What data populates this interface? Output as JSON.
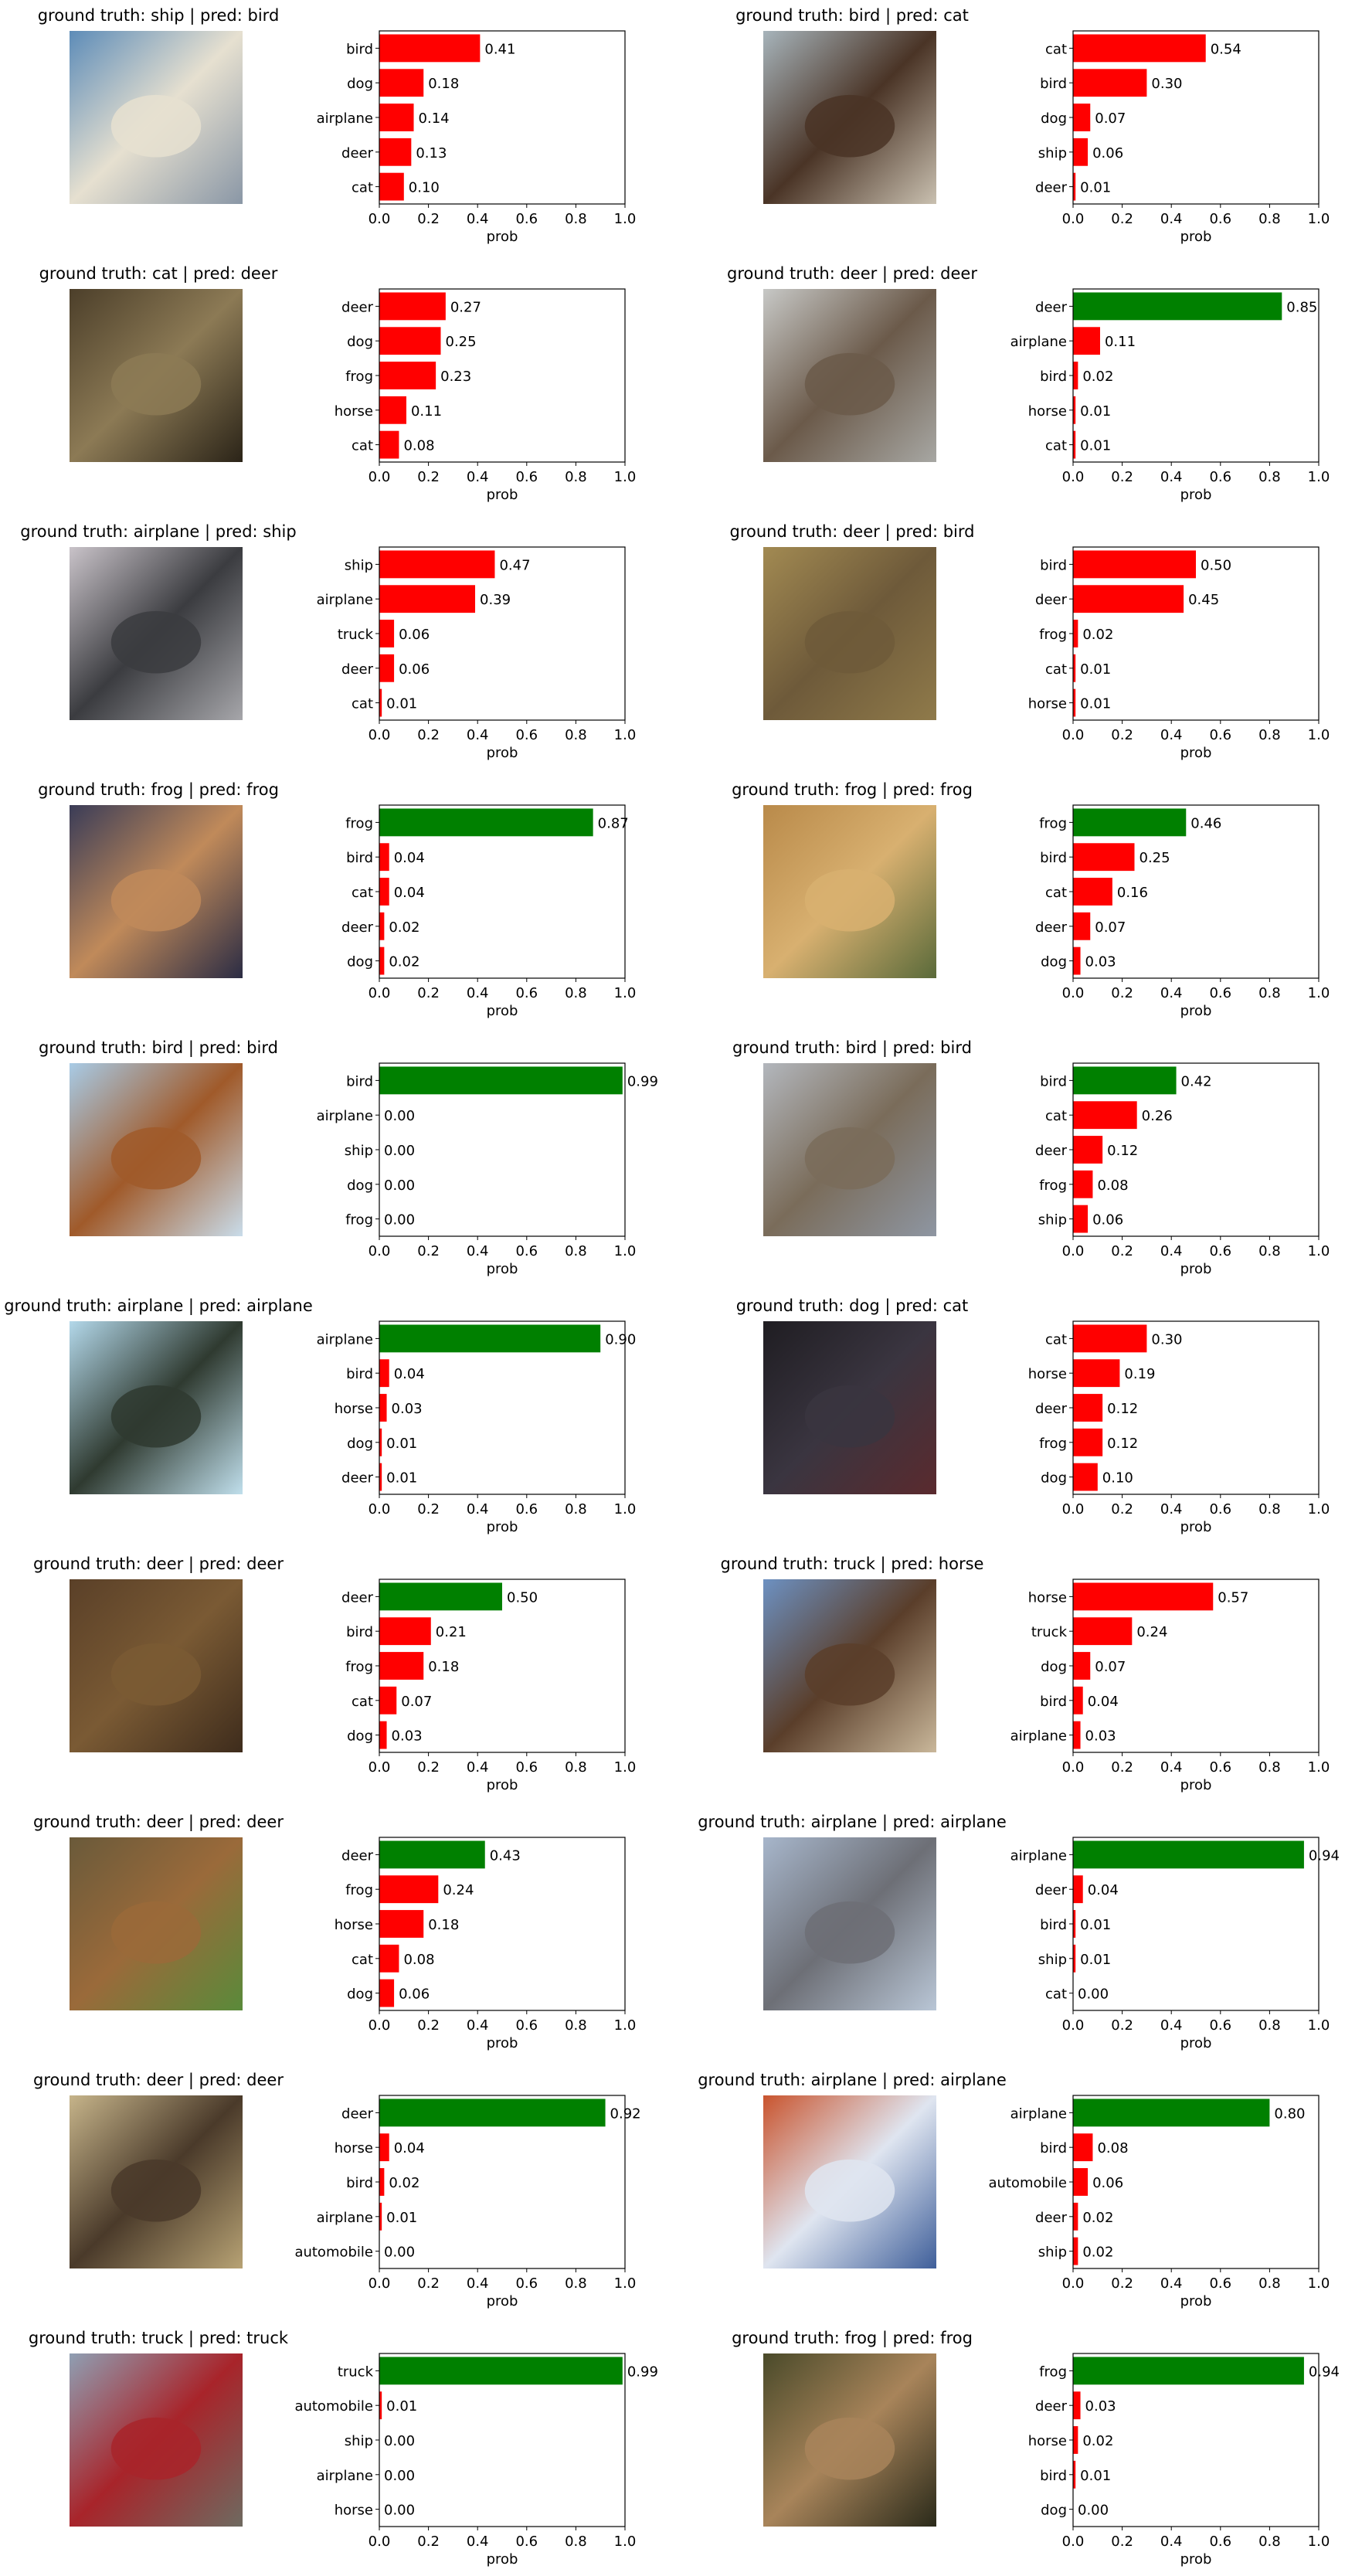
{
  "figure": {
    "xlabel": "prob",
    "xticks": [
      "0.0",
      "0.2",
      "0.4",
      "0.6",
      "0.8",
      "1.0"
    ],
    "title_prefix_gt": "ground truth: ",
    "title_sep": "  |  ",
    "title_prefix_pred": "pred: ",
    "colors": {
      "correct": "#008000",
      "wrong": "#ff0000",
      "axis": "#000000"
    }
  },
  "chart_data": [
    {
      "type": "bar",
      "orientation": "horizontal",
      "ground_truth": "ship",
      "pred": "bird",
      "xlim": [
        0,
        1
      ],
      "categories": [
        "cat",
        "deer",
        "airplane",
        "dog",
        "bird"
      ],
      "values": [
        0.1,
        0.13,
        0.14,
        0.18,
        0.41
      ],
      "thumb_colors": [
        "#5d8cb8",
        "#e6e0d0",
        "#8a97a6"
      ]
    },
    {
      "type": "bar",
      "orientation": "horizontal",
      "ground_truth": "bird",
      "pred": "cat",
      "xlim": [
        0,
        1
      ],
      "categories": [
        "deer",
        "ship",
        "dog",
        "bird",
        "cat"
      ],
      "values": [
        0.01,
        0.06,
        0.07,
        0.3,
        0.54
      ],
      "thumb_colors": [
        "#a7b4bb",
        "#4a3426",
        "#c9c0b0"
      ]
    },
    {
      "type": "bar",
      "orientation": "horizontal",
      "ground_truth": "cat",
      "pred": "deer",
      "xlim": [
        0,
        1
      ],
      "categories": [
        "cat",
        "horse",
        "frog",
        "dog",
        "deer"
      ],
      "values": [
        0.08,
        0.11,
        0.23,
        0.25,
        0.27
      ],
      "thumb_colors": [
        "#4c3f2a",
        "#8c7a55",
        "#2b2418"
      ]
    },
    {
      "type": "bar",
      "orientation": "horizontal",
      "ground_truth": "deer",
      "pred": "deer",
      "xlim": [
        0,
        1
      ],
      "categories": [
        "cat",
        "horse",
        "bird",
        "airplane",
        "deer"
      ],
      "values": [
        0.01,
        0.01,
        0.02,
        0.11,
        0.85
      ],
      "thumb_colors": [
        "#c7c8c6",
        "#6b5a4a",
        "#a7a7a3"
      ]
    },
    {
      "type": "bar",
      "orientation": "horizontal",
      "ground_truth": "airplane",
      "pred": "ship",
      "xlim": [
        0,
        1
      ],
      "categories": [
        "cat",
        "deer",
        "truck",
        "airplane",
        "ship"
      ],
      "values": [
        0.01,
        0.06,
        0.06,
        0.39,
        0.47
      ],
      "thumb_colors": [
        "#c9c3c9",
        "#3b3c40",
        "#a6a6aa"
      ]
    },
    {
      "type": "bar",
      "orientation": "horizontal",
      "ground_truth": "deer",
      "pred": "bird",
      "xlim": [
        0,
        1
      ],
      "categories": [
        "horse",
        "cat",
        "frog",
        "deer",
        "bird"
      ],
      "values": [
        0.01,
        0.01,
        0.02,
        0.45,
        0.5
      ],
      "thumb_colors": [
        "#a28a52",
        "#6e5a3a",
        "#8f7a4a"
      ]
    },
    {
      "type": "bar",
      "orientation": "horizontal",
      "ground_truth": "frog",
      "pred": "frog",
      "xlim": [
        0,
        1
      ],
      "categories": [
        "dog",
        "deer",
        "cat",
        "bird",
        "frog"
      ],
      "values": [
        0.02,
        0.02,
        0.04,
        0.04,
        0.87
      ],
      "thumb_colors": [
        "#3a3c57",
        "#c08a5a",
        "#2b2c44"
      ]
    },
    {
      "type": "bar",
      "orientation": "horizontal",
      "ground_truth": "frog",
      "pred": "frog",
      "xlim": [
        0,
        1
      ],
      "categories": [
        "dog",
        "deer",
        "cat",
        "bird",
        "frog"
      ],
      "values": [
        0.03,
        0.07,
        0.16,
        0.25,
        0.46
      ],
      "thumb_colors": [
        "#b98a4a",
        "#d8b070",
        "#5a6a3a"
      ]
    },
    {
      "type": "bar",
      "orientation": "horizontal",
      "ground_truth": "bird",
      "pred": "bird",
      "xlim": [
        0,
        1
      ],
      "categories": [
        "frog",
        "dog",
        "ship",
        "airplane",
        "bird"
      ],
      "values": [
        0.0,
        0.0,
        0.0,
        0.0,
        0.99
      ],
      "thumb_colors": [
        "#a8cbe6",
        "#a05a2a",
        "#c9dcea"
      ]
    },
    {
      "type": "bar",
      "orientation": "horizontal",
      "ground_truth": "bird",
      "pred": "bird",
      "xlim": [
        0,
        1
      ],
      "categories": [
        "ship",
        "frog",
        "deer",
        "cat",
        "bird"
      ],
      "values": [
        0.06,
        0.08,
        0.12,
        0.26,
        0.42
      ],
      "thumb_colors": [
        "#b3b7bd",
        "#7a6c5a",
        "#8e96a2"
      ]
    },
    {
      "type": "bar",
      "orientation": "horizontal",
      "ground_truth": "airplane",
      "pred": "airplane",
      "xlim": [
        0,
        1
      ],
      "categories": [
        "deer",
        "dog",
        "horse",
        "bird",
        "airplane"
      ],
      "values": [
        0.01,
        0.01,
        0.03,
        0.04,
        0.9
      ],
      "thumb_colors": [
        "#b3d8ea",
        "#2f3a30",
        "#c0dfec"
      ]
    },
    {
      "type": "bar",
      "orientation": "horizontal",
      "ground_truth": "dog",
      "pred": "cat",
      "xlim": [
        0,
        1
      ],
      "categories": [
        "dog",
        "frog",
        "deer",
        "horse",
        "cat"
      ],
      "values": [
        0.1,
        0.12,
        0.12,
        0.19,
        0.3
      ],
      "thumb_colors": [
        "#1f1d22",
        "#3a3540",
        "#5a2a2e"
      ]
    },
    {
      "type": "bar",
      "orientation": "horizontal",
      "ground_truth": "deer",
      "pred": "deer",
      "xlim": [
        0,
        1
      ],
      "categories": [
        "dog",
        "cat",
        "frog",
        "bird",
        "deer"
      ],
      "values": [
        0.03,
        0.07,
        0.18,
        0.21,
        0.5
      ],
      "thumb_colors": [
        "#5a4028",
        "#7a5a34",
        "#3e2c1c"
      ]
    },
    {
      "type": "bar",
      "orientation": "horizontal",
      "ground_truth": "truck",
      "pred": "horse",
      "xlim": [
        0,
        1
      ],
      "categories": [
        "airplane",
        "bird",
        "dog",
        "truck",
        "horse"
      ],
      "values": [
        0.03,
        0.04,
        0.07,
        0.24,
        0.57
      ],
      "thumb_colors": [
        "#6d91c2",
        "#5a3e2a",
        "#c9b79a"
      ]
    },
    {
      "type": "bar",
      "orientation": "horizontal",
      "ground_truth": "deer",
      "pred": "deer",
      "xlim": [
        0,
        1
      ],
      "categories": [
        "dog",
        "cat",
        "horse",
        "frog",
        "deer"
      ],
      "values": [
        0.06,
        0.08,
        0.18,
        0.24,
        0.43
      ],
      "thumb_colors": [
        "#6a5a3a",
        "#9a6a3a",
        "#5a8a3a"
      ]
    },
    {
      "type": "bar",
      "orientation": "horizontal",
      "ground_truth": "airplane",
      "pred": "airplane",
      "xlim": [
        0,
        1
      ],
      "categories": [
        "cat",
        "ship",
        "bird",
        "deer",
        "airplane"
      ],
      "values": [
        0.0,
        0.01,
        0.01,
        0.04,
        0.94
      ],
      "thumb_colors": [
        "#a7b6cb",
        "#6d6f76",
        "#b9c6d6"
      ]
    },
    {
      "type": "bar",
      "orientation": "horizontal",
      "ground_truth": "deer",
      "pred": "deer",
      "xlim": [
        0,
        1
      ],
      "categories": [
        "automobile",
        "airplane",
        "bird",
        "horse",
        "deer"
      ],
      "values": [
        0.0,
        0.01,
        0.02,
        0.04,
        0.92
      ],
      "thumb_colors": [
        "#c6b48a",
        "#4a3a2a",
        "#b7a274"
      ]
    },
    {
      "type": "bar",
      "orientation": "horizontal",
      "ground_truth": "airplane",
      "pred": "airplane",
      "xlim": [
        0,
        1
      ],
      "categories": [
        "ship",
        "deer",
        "automobile",
        "bird",
        "airplane"
      ],
      "values": [
        0.02,
        0.02,
        0.06,
        0.08,
        0.8
      ],
      "thumb_colors": [
        "#c9542e",
        "#dfe5f0",
        "#3f5f9a"
      ]
    },
    {
      "type": "bar",
      "orientation": "horizontal",
      "ground_truth": "truck",
      "pred": "truck",
      "xlim": [
        0,
        1
      ],
      "categories": [
        "horse",
        "airplane",
        "ship",
        "automobile",
        "truck"
      ],
      "values": [
        0.0,
        0.0,
        0.0,
        0.01,
        0.99
      ],
      "thumb_colors": [
        "#8f9fb3",
        "#a8242a",
        "#6e6a60"
      ]
    },
    {
      "type": "bar",
      "orientation": "horizontal",
      "ground_truth": "frog",
      "pred": "frog",
      "xlim": [
        0,
        1
      ],
      "categories": [
        "dog",
        "bird",
        "horse",
        "deer",
        "frog"
      ],
      "values": [
        0.0,
        0.01,
        0.02,
        0.03,
        0.94
      ],
      "thumb_colors": [
        "#4a4a2a",
        "#a8845a",
        "#2a2a1a"
      ]
    }
  ]
}
